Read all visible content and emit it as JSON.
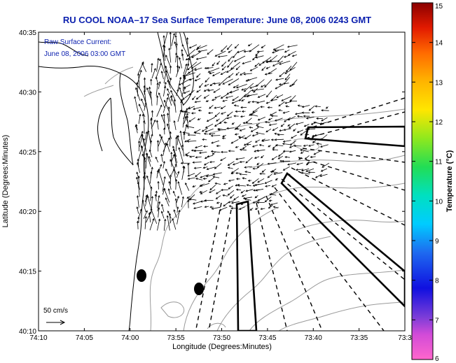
{
  "title": "RU COOL  NOAA–17  Sea Surface Temperature:  June 08, 2006 0243 GMT",
  "annotation": {
    "line1": "Raw Surface Current:",
    "line2": "June 08, 2006 03:00 GMT"
  },
  "scale_label": "50 cm/s",
  "axes": {
    "xlabel": "Longitude (Degrees:Minutes)",
    "ylabel": "Latitude (Degrees:Minutes)",
    "xticks": [
      "74:10",
      "74:05",
      "74:00",
      "73:55",
      "73:50",
      "73:45",
      "73:40",
      "73:35",
      "73:3"
    ],
    "yticks": [
      "40:35",
      "40:30",
      "40:25",
      "40:20",
      "40:15",
      "40:10"
    ]
  },
  "colorbar": {
    "label": "Temperature (°C)",
    "min": 6,
    "max": 15,
    "ticks": [
      "15",
      "14",
      "13",
      "12",
      "11",
      "10",
      "9",
      "8",
      "7",
      "6"
    ]
  },
  "colors": {
    "title": "#0a1fae",
    "coast": "#000000",
    "bathymetry": "#9a9a9a",
    "vectors": "#000000"
  }
}
